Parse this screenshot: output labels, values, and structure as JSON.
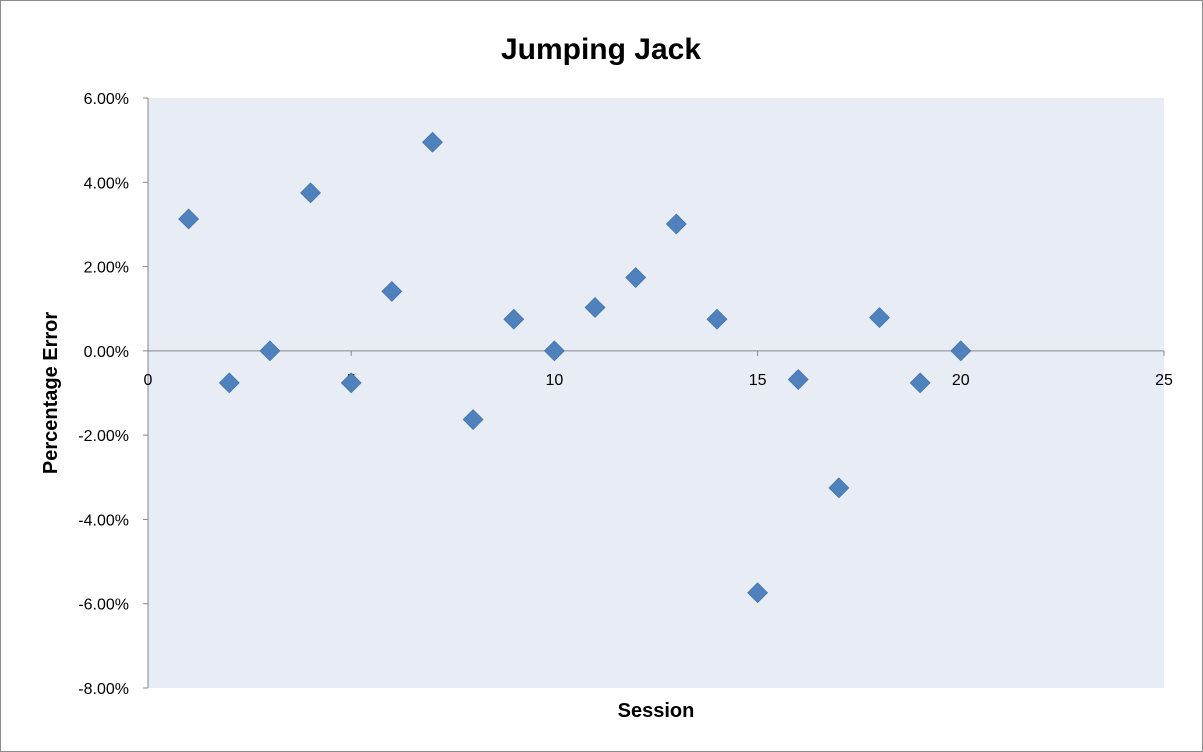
{
  "chart_data": {
    "type": "scatter",
    "title": "Jumping Jack",
    "xlabel": "Session",
    "ylabel": "Percentage Error",
    "xlim": [
      0,
      25
    ],
    "ylim": [
      -0.08,
      0.06
    ],
    "x_ticks": [
      0,
      5,
      10,
      15,
      20,
      25
    ],
    "x_tick_labels": [
      "0",
      "5",
      "10",
      "15",
      "20",
      "25"
    ],
    "y_ticks": [
      0.06,
      0.04,
      0.02,
      0.0,
      -0.02,
      -0.04,
      -0.06,
      -0.08
    ],
    "y_tick_labels": [
      "6.00%",
      "4.00%",
      "2.00%",
      "0.00%",
      "-2.00%",
      "-4.00%",
      "-6.00%",
      "-8.00%"
    ],
    "grid": false,
    "legend": "none",
    "plot_background": "#e8ecf4",
    "marker": "diamond",
    "marker_color": "#4f81bd",
    "series": [
      {
        "x": [
          1,
          2,
          3,
          4,
          5,
          6,
          7,
          8,
          9,
          10,
          11,
          12,
          13,
          14,
          15,
          16,
          17,
          18,
          19,
          20
        ],
        "y": [
          0.0313,
          -0.0076,
          0.0,
          0.0375,
          -0.0076,
          0.0141,
          0.0495,
          -0.0163,
          0.0075,
          0.0,
          0.0103,
          0.0174,
          0.0301,
          0.0075,
          -0.0574,
          -0.0068,
          -0.0325,
          0.0079,
          -0.0076,
          0.0
        ]
      }
    ]
  }
}
